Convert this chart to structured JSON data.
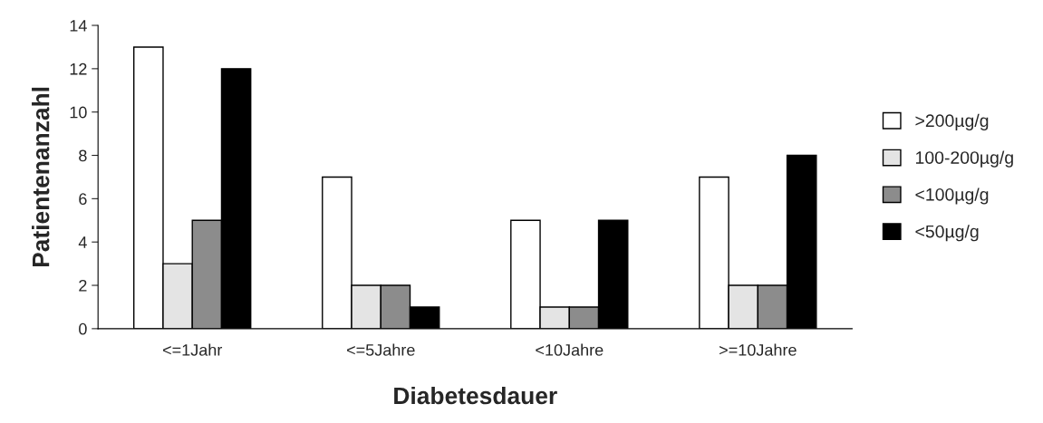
{
  "chart_data": {
    "type": "bar",
    "xlabel": "Diabetesdauer",
    "ylabel": "Patientenanzahl",
    "categories": [
      "<=1Jahr",
      "<=5Jahre",
      "<10Jahre",
      ">=10Jahre"
    ],
    "series": [
      {
        "name": ">200µg/g",
        "color": "#ffffff",
        "values": [
          13,
          7,
          5,
          7
        ]
      },
      {
        "name": "100-200µg/g",
        "color": "#e4e4e4",
        "values": [
          3,
          2,
          1,
          2
        ]
      },
      {
        "name": "<100µg/g",
        "color": "#8c8c8c",
        "values": [
          5,
          2,
          1,
          2
        ]
      },
      {
        "name": "<50µg/g",
        "color": "#000000",
        "values": [
          12,
          1,
          5,
          8
        ]
      }
    ],
    "ylim": [
      0,
      14
    ],
    "yticks": [
      0,
      2,
      4,
      6,
      8,
      10,
      12,
      14
    ],
    "grid": false,
    "legend": "right"
  }
}
